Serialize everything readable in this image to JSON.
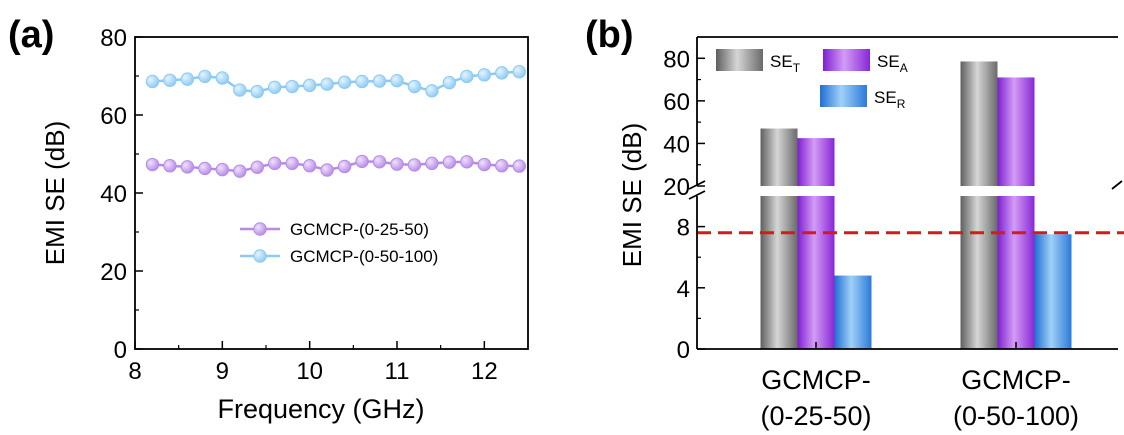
{
  "chart_data": [
    {
      "panel_label": "(a)",
      "type": "line",
      "xlabel": "Frequency (GHz)",
      "ylabel": "EMI SE (dB)",
      "xlim": [
        8,
        12.5
      ],
      "ylim": [
        0,
        80
      ],
      "xticks": [
        "8",
        "9",
        "10",
        "11",
        "12"
      ],
      "yticks": [
        "0",
        "20",
        "40",
        "60",
        "80"
      ],
      "x": [
        8.2,
        8.4,
        8.6,
        8.8,
        9.0,
        9.2,
        9.4,
        9.6,
        9.8,
        10.0,
        10.2,
        10.4,
        10.6,
        10.8,
        11.0,
        11.2,
        11.4,
        11.6,
        11.8,
        12.0,
        12.2,
        12.4
      ],
      "series": [
        {
          "name": "GCMCP-(0-25-50)",
          "color": "#b78ae8",
          "values": [
            47.3,
            47.0,
            46.7,
            46.3,
            46.0,
            45.6,
            46.6,
            47.6,
            47.6,
            47.0,
            45.9,
            46.8,
            48.1,
            48.0,
            47.4,
            47.2,
            47.6,
            47.9,
            48.0,
            47.3,
            47.0,
            46.9
          ]
        },
        {
          "name": "GCMCP-(0-50-100)",
          "color": "#8ccaf2",
          "values": [
            68.6,
            68.9,
            69.2,
            69.9,
            69.5,
            66.4,
            66.0,
            67.1,
            67.3,
            67.6,
            67.9,
            68.4,
            68.6,
            68.7,
            68.8,
            67.3,
            66.2,
            68.3,
            69.9,
            70.3,
            70.8,
            71.1
          ]
        }
      ],
      "legend_position": "center-right"
    },
    {
      "panel_label": "(b)",
      "type": "bar",
      "ylabel": "EMI SE (dB)",
      "categories": [
        [
          "GCMCP-",
          "(0-25-50)"
        ],
        [
          "GCMCP-",
          "(0-50-100)"
        ]
      ],
      "series": [
        {
          "name": "SE",
          "sub": "T",
          "color": "#8a8a8a",
          "values": [
            47.0,
            78.5
          ]
        },
        {
          "name": "SE",
          "sub": "A",
          "color": "#9a3de0",
          "values": [
            42.5,
            71.0
          ]
        },
        {
          "name": "SE",
          "sub": "R",
          "color": "#3a8fe0",
          "values": [
            4.8,
            7.5
          ]
        }
      ],
      "y_axis_break": true,
      "ylim_lower": [
        0,
        10
      ],
      "ylim_upper": [
        20,
        90
      ],
      "yticks_lower": [
        "0",
        "4",
        "8"
      ],
      "yticks_upper": [
        "20",
        "40",
        "60",
        "80"
      ],
      "threshold_line": {
        "value": 7.6,
        "color": "#d01c1c",
        "style": "dashed"
      },
      "legend_position": "top-left"
    }
  ]
}
